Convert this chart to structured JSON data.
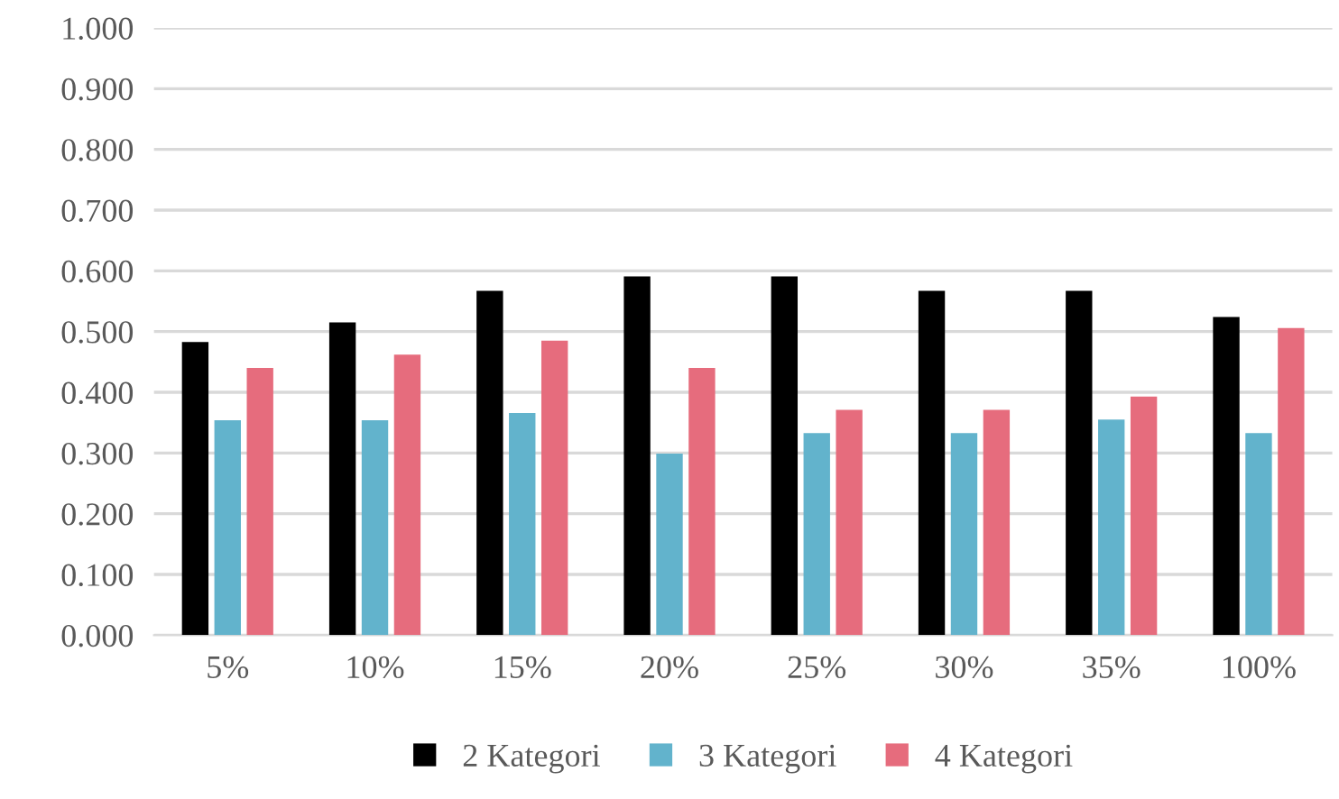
{
  "chart_data": {
    "type": "bar",
    "categories": [
      "5%",
      "10%",
      "15%",
      "20%",
      "25%",
      "30%",
      "35%",
      "100%"
    ],
    "series": [
      {
        "name": "2 Kategori",
        "color": "#000000",
        "values": [
          0.483,
          0.515,
          0.567,
          0.591,
          0.591,
          0.567,
          0.567,
          0.524
        ]
      },
      {
        "name": "3 Kategori",
        "color": "#62b3cc",
        "values": [
          0.354,
          0.354,
          0.366,
          0.299,
          0.333,
          0.333,
          0.355,
          0.333
        ]
      },
      {
        "name": "4 Kategori",
        "color": "#e66c7d",
        "values": [
          0.44,
          0.462,
          0.485,
          0.44,
          0.371,
          0.371,
          0.393,
          0.506
        ]
      }
    ],
    "ylim": [
      0,
      1
    ],
    "yticks": [
      {
        "value": 0,
        "label": "0.000"
      },
      {
        "value": 0.1,
        "label": "0.100"
      },
      {
        "value": 0.2,
        "label": "0.200"
      },
      {
        "value": 0.3,
        "label": "0.300"
      },
      {
        "value": 0.4,
        "label": "0.400"
      },
      {
        "value": 0.5,
        "label": "0.500"
      },
      {
        "value": 0.6,
        "label": "0.600"
      },
      {
        "value": 0.7,
        "label": "0.700"
      },
      {
        "value": 0.8,
        "label": "0.800"
      },
      {
        "value": 0.9,
        "label": "0.900"
      },
      {
        "value": 1,
        "label": "1.000"
      }
    ],
    "grid": "y",
    "legend": "bottom"
  }
}
